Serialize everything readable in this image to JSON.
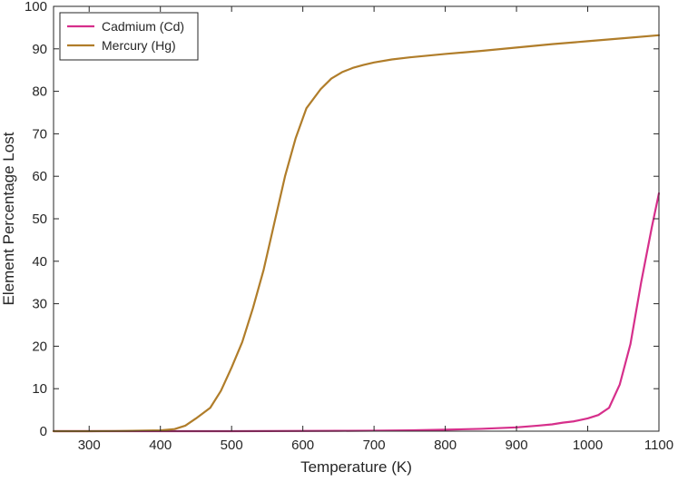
{
  "chart_data": {
    "type": "line",
    "title": "",
    "xlabel": "Temperature (K)",
    "ylabel": "Element Percentage Lost",
    "xlim": [
      250,
      1100
    ],
    "ylim": [
      0,
      100
    ],
    "xticks": [
      300,
      400,
      500,
      600,
      700,
      800,
      900,
      1000,
      1100
    ],
    "yticks": [
      0,
      10,
      20,
      30,
      40,
      50,
      60,
      70,
      80,
      90,
      100
    ],
    "grid": false,
    "legend_position": "top-left",
    "series": [
      {
        "name": "Cadmium (Cd)",
        "color": "#d62f8b",
        "x": [
          250,
          300,
          350,
          400,
          450,
          500,
          550,
          600,
          650,
          700,
          750,
          800,
          850,
          900,
          930,
          950,
          965,
          980,
          1000,
          1015,
          1030,
          1045,
          1060,
          1075,
          1090,
          1100
        ],
        "y": [
          0,
          0,
          0,
          0,
          0,
          0,
          0.02,
          0.05,
          0.08,
          0.12,
          0.2,
          0.35,
          0.55,
          0.9,
          1.3,
          1.6,
          2.0,
          2.3,
          3.0,
          3.8,
          5.5,
          11,
          20.5,
          35,
          48,
          56
        ]
      },
      {
        "name": "Mercury (Hg)",
        "color": "#b07d2a",
        "x": [
          250,
          300,
          350,
          400,
          420,
          435,
          450,
          470,
          485,
          500,
          515,
          530,
          545,
          560,
          575,
          590,
          605,
          625,
          640,
          655,
          670,
          685,
          700,
          725,
          750,
          800,
          850,
          900,
          950,
          1000,
          1050,
          1100
        ],
        "y": [
          0,
          0,
          0.05,
          0.2,
          0.5,
          1.3,
          3.0,
          5.5,
          9.5,
          15,
          21,
          29,
          38,
          49,
          60,
          69,
          76,
          80.5,
          83,
          84.5,
          85.5,
          86.2,
          86.8,
          87.5,
          88,
          88.8,
          89.5,
          90.3,
          91.1,
          91.8,
          92.5,
          93.2
        ]
      }
    ]
  }
}
